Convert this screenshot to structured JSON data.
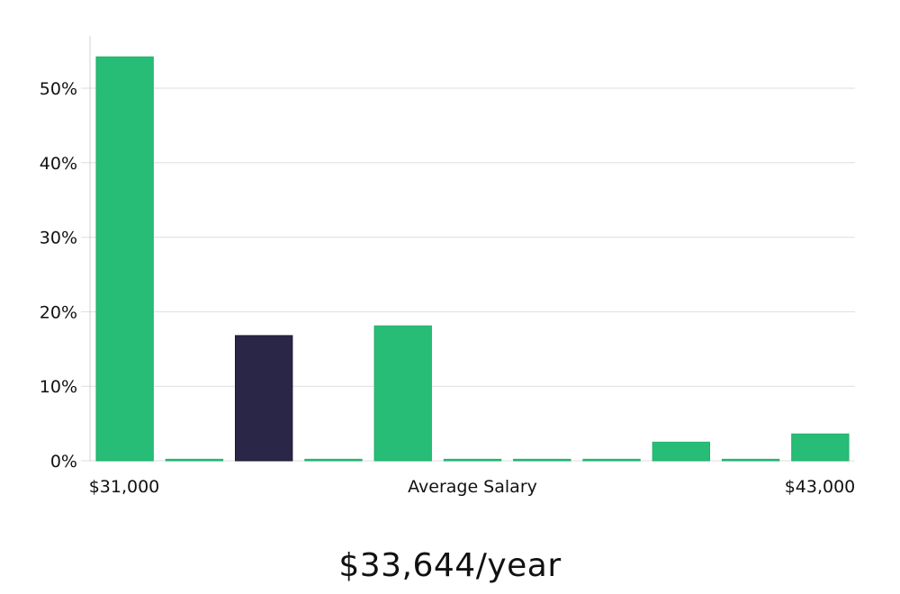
{
  "chart_data": {
    "type": "bar",
    "title": "",
    "xlabel": "Average Salary",
    "ylabel": "",
    "x_range_labels": [
      "$31,000",
      "$43,000"
    ],
    "y_tick_labels": [
      "0%",
      "10%",
      "20%",
      "30%",
      "40%",
      "50%"
    ],
    "y_ticks": [
      0,
      10,
      20,
      30,
      40,
      50
    ],
    "ylim": [
      0,
      57
    ],
    "grid": true,
    "values": [
      54.2,
      0.2,
      16.8,
      0.2,
      18.1,
      0.2,
      0.2,
      0.2,
      2.5,
      0.2,
      3.6
    ],
    "highlight_index": 2,
    "colors": {
      "bar": "#27bd76",
      "highlight": "#2a2648",
      "grid": "#dddddd",
      "axis": "#d0d0d0"
    }
  },
  "summary": {
    "salary_label": "$33,644/year"
  }
}
